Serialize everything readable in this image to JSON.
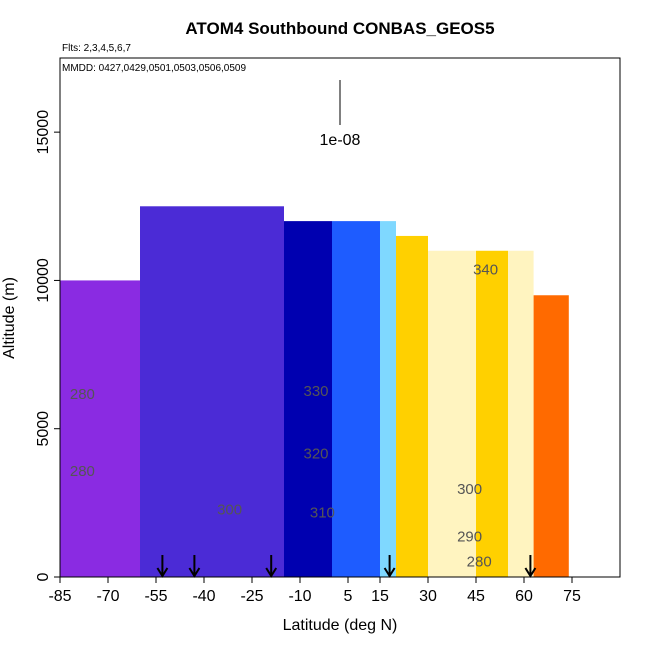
{
  "chart_data": {
    "type": "heatmap",
    "title": "ATOM4 Southbound CONBAS_GEOS5",
    "flights_label": "Flts: 2,3,4,5,6,7",
    "mmdd_label": "MMDD: 0427,0429,0501,0503,0506,0509",
    "xlabel": "Latitude (deg N)",
    "ylabel": "Altitude (m)",
    "xlim": [
      -85,
      90
    ],
    "ylim": [
      0,
      17500
    ],
    "xticks": [
      "-85",
      "-70",
      "-55",
      "-40",
      "-25",
      "-10",
      "5",
      "15",
      "30",
      "45",
      "60",
      "75"
    ],
    "xtick_values": [
      -85,
      -70,
      -55,
      -40,
      -25,
      -10,
      5,
      15,
      30,
      45,
      60,
      75
    ],
    "yticks": [
      "0",
      "5000",
      "10000",
      "15000"
    ],
    "ytick_values": [
      0,
      5000,
      10000,
      15000
    ],
    "colorscale_note": "1e-08",
    "latitude_bands": [
      {
        "lat": [
          -85,
          -60
        ],
        "alt_top": 10000,
        "value": 0.05
      },
      {
        "lat": [
          -60,
          -35
        ],
        "alt_top": 12500,
        "value": 0.08
      },
      {
        "lat": [
          -35,
          -15
        ],
        "alt_top": 12500,
        "value": 0.15
      },
      {
        "lat": [
          -15,
          0
        ],
        "alt_top": 12000,
        "value": 0.25
      },
      {
        "lat": [
          0,
          15
        ],
        "alt_top": 12000,
        "value": 0.35
      },
      {
        "lat": [
          15,
          20
        ],
        "alt_top": 12000,
        "value": 0.5
      },
      {
        "lat": [
          20,
          30
        ],
        "alt_top": 11500,
        "value": 0.78
      },
      {
        "lat": [
          30,
          45
        ],
        "alt_top": 11000,
        "value": 0.62
      },
      {
        "lat": [
          45,
          55
        ],
        "alt_top": 11000,
        "value": 0.72
      },
      {
        "lat": [
          55,
          63
        ],
        "alt_top": 11000,
        "value": 0.6
      },
      {
        "lat": [
          63,
          74
        ],
        "alt_top": 9500,
        "value": 0.85
      }
    ],
    "colormap": [
      "#8a2be2",
      "#4b2bd6",
      "#0000b0",
      "#1e5cff",
      "#7fd8ff",
      "#fff4c0",
      "#ffd000",
      "#ff6a00",
      "#c80000"
    ],
    "contour_labels": [
      {
        "text": "340",
        "lat": 48,
        "alt": 10200
      },
      {
        "text": "330",
        "lat": -5,
        "alt": 6100
      },
      {
        "text": "320",
        "lat": -5,
        "alt": 4000
      },
      {
        "text": "310",
        "lat": -3,
        "alt": 2000
      },
      {
        "text": "300",
        "lat": -32,
        "alt": 2100
      },
      {
        "text": "300",
        "lat": 43,
        "alt": 2800
      },
      {
        "text": "290",
        "lat": 43,
        "alt": 1200
      },
      {
        "text": "280",
        "lat": -78,
        "alt": 6000
      },
      {
        "text": "280",
        "lat": -78,
        "alt": 3400
      },
      {
        "text": "280",
        "lat": 46,
        "alt": 350
      }
    ],
    "flight_markers_lat": [
      -53,
      -43,
      -19,
      18,
      62
    ]
  }
}
